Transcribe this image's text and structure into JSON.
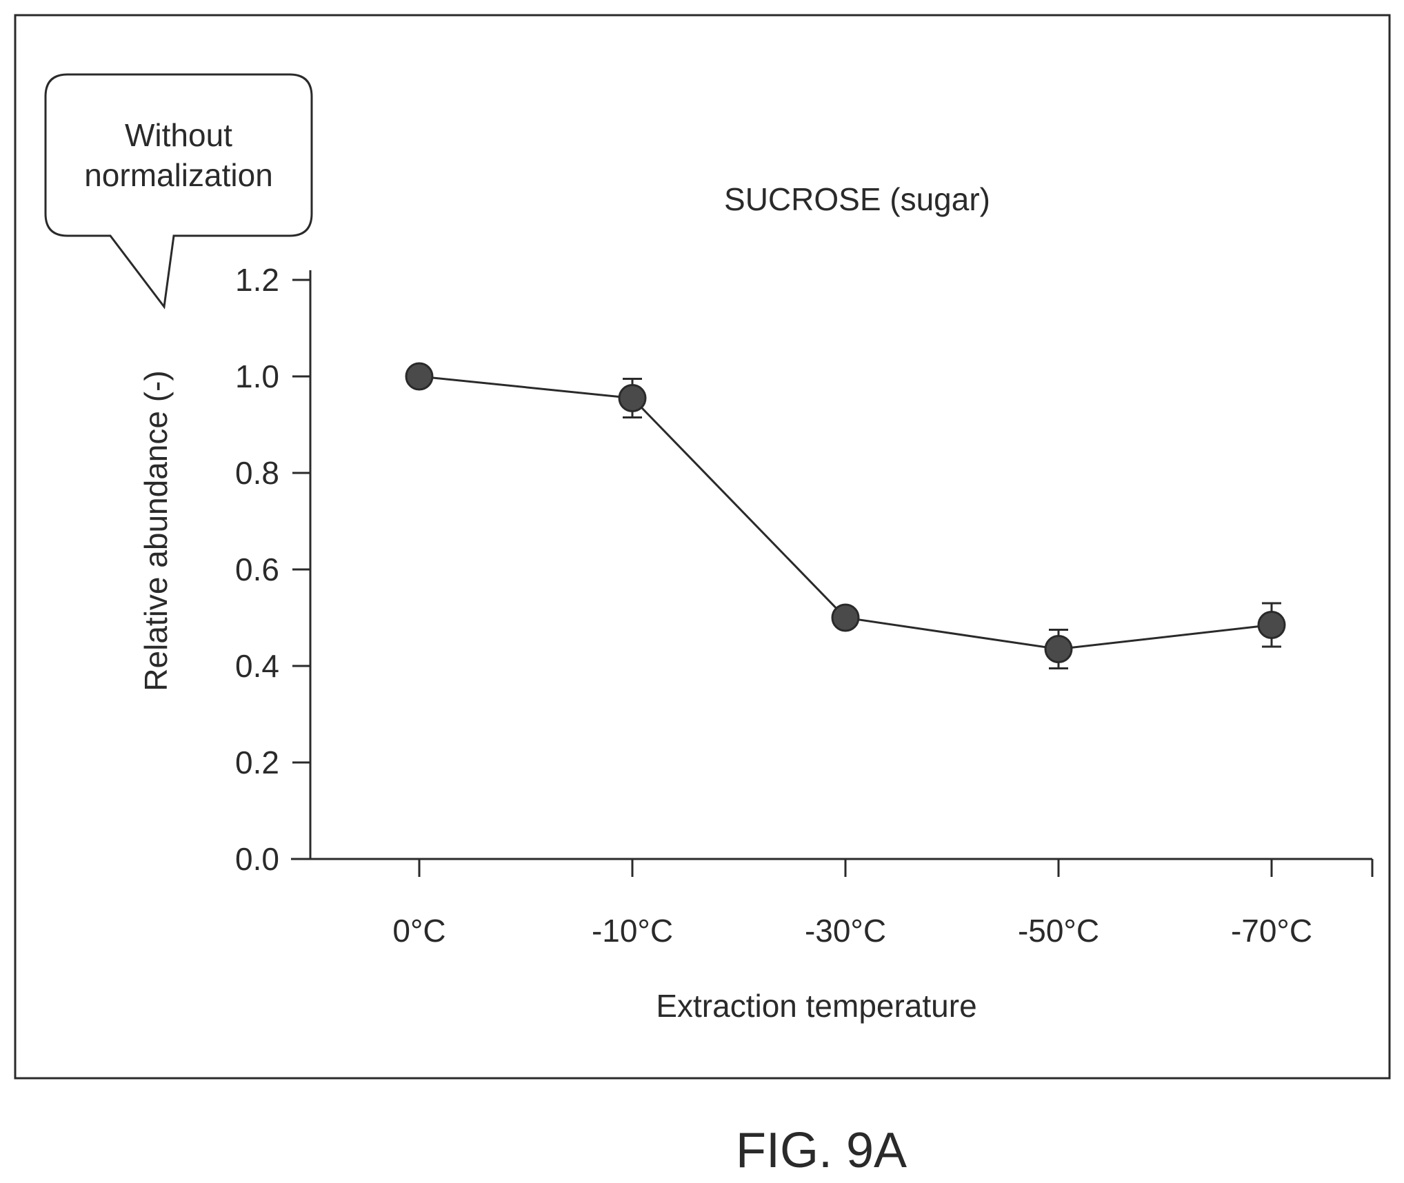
{
  "callout": {
    "line1": "Without",
    "line2": "normalization"
  },
  "figure_label": "FIG. 9A",
  "chart_data": {
    "type": "line",
    "title": "SUCROSE (sugar)",
    "xlabel": "Extraction temperature",
    "ylabel": "Relative abundance (-)",
    "categories": [
      "0°C",
      "-10°C",
      "-30°C",
      "-50°C",
      "-70°C"
    ],
    "series": [
      {
        "values": [
          1.0,
          0.955,
          0.5,
          0.435,
          0.485
        ],
        "error": [
          0.0,
          0.04,
          0.0,
          0.04,
          0.045
        ]
      }
    ],
    "ylim": [
      0.0,
      1.2
    ],
    "yticks": [
      "0.0",
      "0.2",
      "0.4",
      "0.6",
      "0.8",
      "1.0",
      "1.2"
    ],
    "ytick_values": [
      0.0,
      0.2,
      0.4,
      0.6,
      0.8,
      1.0,
      1.2
    ],
    "grid": false,
    "legend": "none",
    "colors": {
      "line": "#2a2a2a",
      "marker": "#4a4a4a",
      "frame": "#2a2a2a"
    }
  }
}
